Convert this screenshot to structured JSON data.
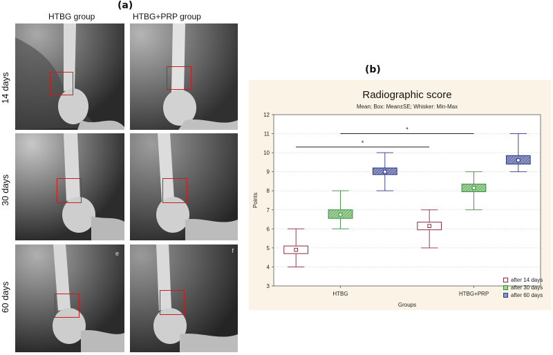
{
  "figure": {
    "panel_a_label": "(a)",
    "panel_b_label": "(b)"
  },
  "xray_panel": {
    "columns": [
      "HTBG group",
      "HTBG+PRP group"
    ],
    "rows": [
      "14 days",
      "30 days",
      "60 days"
    ],
    "corner_letters": {
      "e": "e",
      "f": "f"
    },
    "roi_color": "#c41e1e"
  },
  "chart_data": {
    "type": "box",
    "title": "Radiographic score",
    "subtitle": "Mean; Box: Mean±SE; Whisker: Min-Max",
    "xlabel": "Groups",
    "ylabel": "Points",
    "categories": [
      "HTBG",
      "HTBG+PRP"
    ],
    "ylim": [
      3,
      12
    ],
    "yticks": [
      3,
      4,
      5,
      6,
      7,
      8,
      9,
      10,
      11,
      12
    ],
    "grid": true,
    "legend_position": "right-bottom",
    "series": [
      {
        "name": "after 14 days",
        "color": "#8b2a3a",
        "fill": "#ffffff",
        "values": [
          {
            "mean": 4.9,
            "se_low": 4.7,
            "se_high": 5.1,
            "min": 4.0,
            "max": 6.0
          },
          {
            "mean": 6.15,
            "se_low": 5.95,
            "se_high": 6.35,
            "min": 5.0,
            "max": 7.0
          }
        ]
      },
      {
        "name": "after 30 days",
        "color": "#3b8a3b",
        "fill": "#9fd39a",
        "values": [
          {
            "mean": 6.75,
            "se_low": 6.55,
            "se_high": 7.0,
            "min": 6.0,
            "max": 8.0
          },
          {
            "mean": 8.15,
            "se_low": 7.95,
            "se_high": 8.35,
            "min": 7.0,
            "max": 9.0
          }
        ]
      },
      {
        "name": "after 60 days",
        "color": "#2c3680",
        "fill": "#8e97c4",
        "values": [
          {
            "mean": 9.0,
            "se_low": 8.85,
            "se_high": 9.2,
            "min": 8.0,
            "max": 10.0
          },
          {
            "mean": 9.6,
            "se_low": 9.4,
            "se_high": 9.85,
            "min": 9.0,
            "max": 11.0
          }
        ]
      }
    ],
    "annotations": [
      {
        "text": "*",
        "y": 10.3,
        "from": "HTBG / after 14 days",
        "to": "HTBG+PRP / after 14 days"
      },
      {
        "text": "*",
        "y": 11.0,
        "from": "HTBG / after 30 days",
        "to": "HTBG+PRP / after 30 days"
      }
    ]
  }
}
